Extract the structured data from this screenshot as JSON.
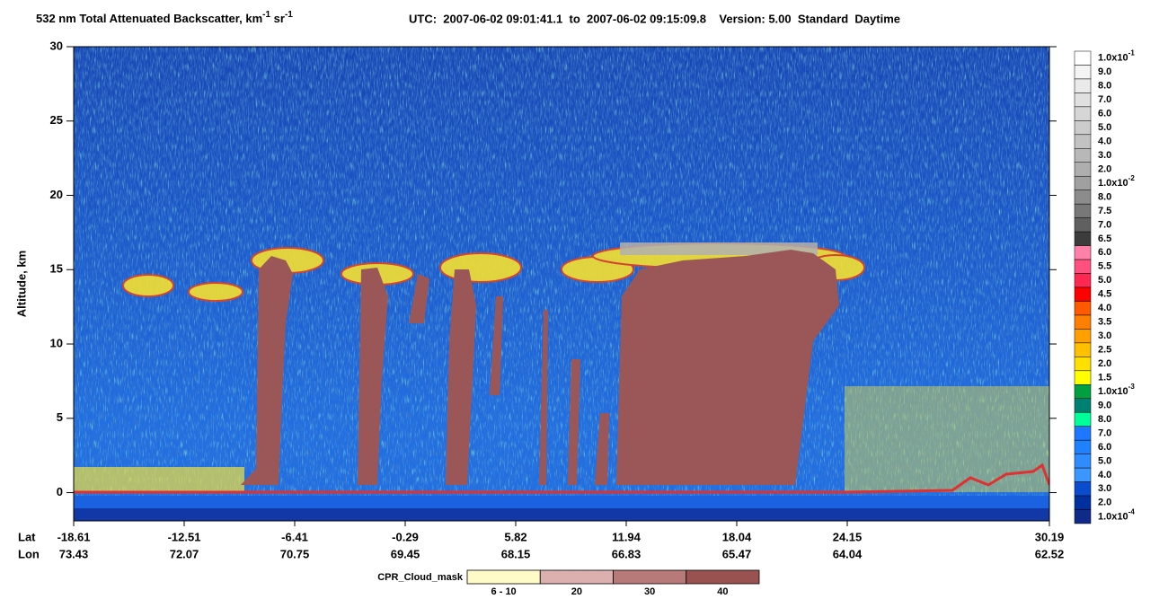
{
  "chart_data": {
    "type": "curtain",
    "title": {
      "text": "532 nm Total Attenuated Backscatter, km",
      "sup1": "-1",
      "text2": " sr",
      "sup2": "-1"
    },
    "subtitle": "UTC:  2007-06-02 09:01:41.1  to  2007-06-02 09:15:09.8    Version: 5.00  Standard  Daytime",
    "y_label": "Altitude, km",
    "ylim": [
      -1.9,
      30
    ],
    "yticks": [
      0,
      5,
      10,
      15,
      20,
      25,
      30
    ],
    "x_rows": [
      "Lat",
      "Lon"
    ],
    "lat": [
      -18.61,
      -12.51,
      -6.41,
      -0.29,
      5.82,
      11.94,
      18.04,
      24.15,
      30.19
    ],
    "lon": [
      73.43,
      72.07,
      70.75,
      69.45,
      68.15,
      66.83,
      65.47,
      64.04,
      62.52
    ],
    "colorbar": {
      "labels": [
        {
          "text": "1.0x10",
          "sup": "-1"
        },
        "9.0",
        "8.0",
        "7.0",
        "6.0",
        "5.0",
        "4.0",
        "3.0",
        "2.0",
        {
          "text": "1.0x10",
          "sup": "-2"
        },
        "8.0",
        "7.5",
        "7.0",
        "6.5",
        "6.0",
        "5.5",
        "5.0",
        "4.5",
        "4.0",
        "3.5",
        "3.0",
        "2.5",
        "2.0",
        "1.5",
        {
          "text": "1.0x10",
          "sup": "-3"
        },
        "9.0",
        "8.0",
        "7.0",
        "6.0",
        "5.0",
        "4.0",
        "3.0",
        "2.0",
        {
          "text": "1.0x10",
          "sup": "-4"
        }
      ],
      "colors": [
        "#ffffff",
        "#f4f4f4",
        "#eaeaea",
        "#e0e0e0",
        "#d6d6d6",
        "#cccccc",
        "#c2c2c2",
        "#b8b8b8",
        "#aeaeae",
        "#a0a0a0",
        "#8c8c8c",
        "#787878",
        "#606060",
        "#3c3c3c",
        "#ff80a8",
        "#ff5080",
        "#ff2850",
        "#ff0000",
        "#ff5a00",
        "#ff7f00",
        "#ffa000",
        "#ffc000",
        "#ffe000",
        "#ffff00",
        "#00a040",
        "#008070",
        "#00ff99",
        "#1e78ff",
        "#1e82ff",
        "#2f8cff",
        "#3c96ff",
        "#0a4cd0",
        "#0030a0",
        "#102a8a"
      ]
    },
    "cloud_mask": {
      "title": "CPR_Cloud_mask",
      "labels": [
        "6 - 10",
        "20",
        "30",
        "40"
      ],
      "colors": [
        "#fffbc8",
        "#dcb0ae",
        "#b87a78",
        "#9a5250"
      ]
    }
  }
}
